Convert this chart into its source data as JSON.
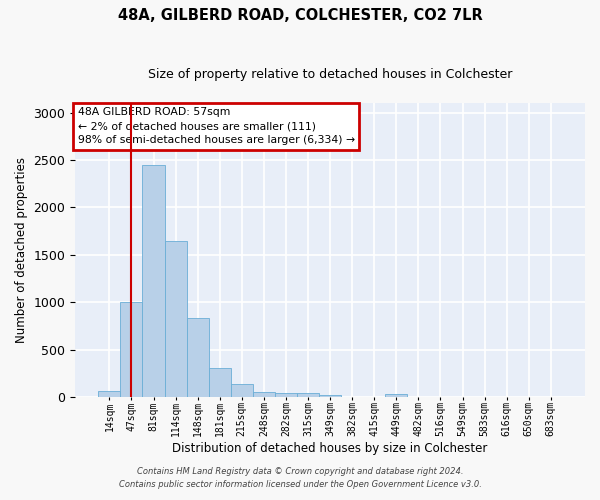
{
  "title_line1": "48A, GILBERD ROAD, COLCHESTER, CO2 7LR",
  "title_line2": "Size of property relative to detached houses in Colchester",
  "xlabel": "Distribution of detached houses by size in Colchester",
  "ylabel": "Number of detached properties",
  "bar_color": "#b8d0e8",
  "bar_edge_color": "#6aaed6",
  "categories": [
    "14sqm",
    "47sqm",
    "81sqm",
    "114sqm",
    "148sqm",
    "181sqm",
    "215sqm",
    "248sqm",
    "282sqm",
    "315sqm",
    "349sqm",
    "382sqm",
    "415sqm",
    "449sqm",
    "482sqm",
    "516sqm",
    "549sqm",
    "583sqm",
    "616sqm",
    "650sqm",
    "683sqm"
  ],
  "values": [
    60,
    1000,
    2450,
    1650,
    830,
    310,
    135,
    55,
    45,
    45,
    25,
    0,
    0,
    30,
    0,
    0,
    0,
    0,
    0,
    0,
    0
  ],
  "ylim": [
    0,
    3100
  ],
  "yticks": [
    0,
    500,
    1000,
    1500,
    2000,
    2500,
    3000
  ],
  "annotation_title": "48A GILBERD ROAD: 57sqm",
  "annotation_line2": "← 2% of detached houses are smaller (111)",
  "annotation_line3": "98% of semi-detached houses are larger (6,334) →",
  "annotation_box_color": "#ffffff",
  "annotation_border_color": "#cc0000",
  "vline_x": 1,
  "vline_color": "#cc0000",
  "bg_color": "#e8eef8",
  "fig_bg_color": "#f8f8f8",
  "grid_color": "#ffffff",
  "footer_line1": "Contains HM Land Registry data © Crown copyright and database right 2024.",
  "footer_line2": "Contains public sector information licensed under the Open Government Licence v3.0."
}
